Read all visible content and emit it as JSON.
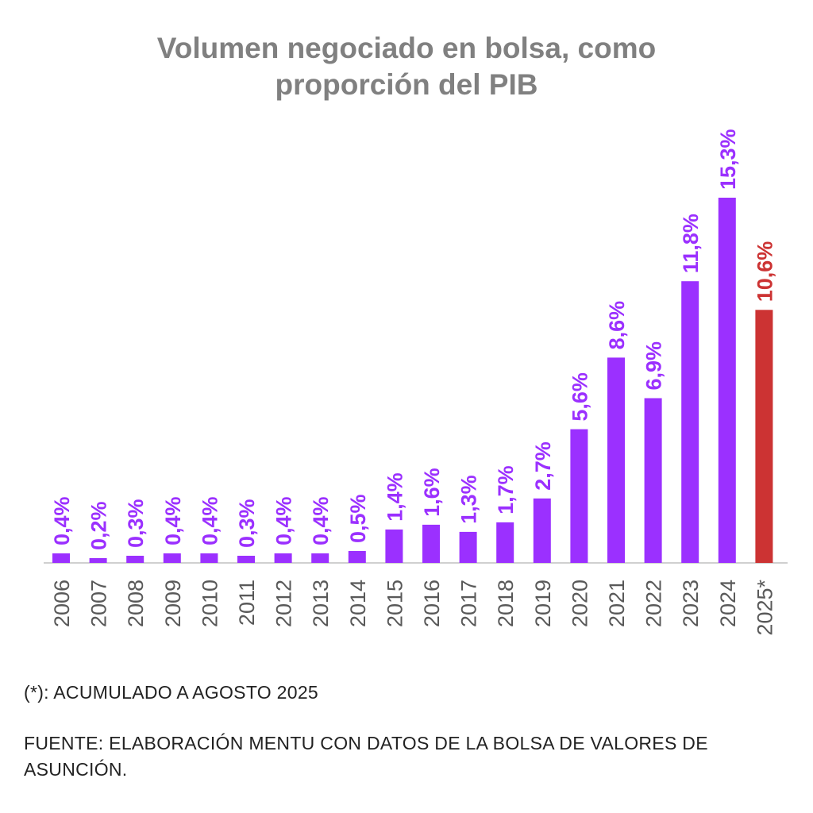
{
  "chart_data": {
    "type": "bar",
    "title_lines": [
      "Volumen negociado en bolsa, como",
      "proporción del PIB"
    ],
    "xlabel": "",
    "ylabel": "",
    "ylim": [
      0,
      15.3
    ],
    "categories": [
      "2006",
      "2007",
      "2008",
      "2009",
      "2010",
      "2011",
      "2012",
      "2013",
      "2014",
      "2015",
      "2016",
      "2017",
      "2018",
      "2019",
      "2020",
      "2021",
      "2022",
      "2023",
      "2024",
      "2025*"
    ],
    "values": [
      0.4,
      0.2,
      0.3,
      0.4,
      0.4,
      0.3,
      0.4,
      0.4,
      0.5,
      1.4,
      1.6,
      1.3,
      1.7,
      2.7,
      5.6,
      8.6,
      6.9,
      11.8,
      15.3,
      10.6
    ],
    "labels": [
      "0,4%",
      "0,2%",
      "0,3%",
      "0,4%",
      "0,4%",
      "0,3%",
      "0,4%",
      "0,4%",
      "0,5%",
      "1,4%",
      "1,6%",
      "1,3%",
      "1,7%",
      "2,7%",
      "5,6%",
      "8,6%",
      "6,9%",
      "11,8%",
      "15,3%",
      "10,6%"
    ],
    "highlight_index": 19,
    "colors": {
      "bar": "#9b30ff",
      "highlight": "#cc3333",
      "axis_text": "#595959",
      "title": "#808080",
      "baseline": "#d0d0d0"
    },
    "grid": false,
    "legend": "none"
  },
  "notes": {
    "footnote": "(*): ACUMULADO A AGOSTO 2025",
    "source": "FUENTE: ELABORACIÓN MENTU CON DATOS DE LA BOLSA DE VALORES DE ASUNCIÓN."
  }
}
